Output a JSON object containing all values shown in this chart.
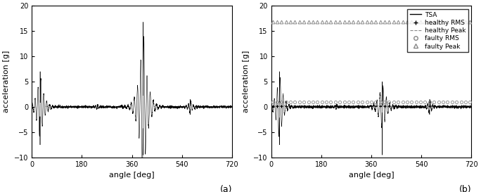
{
  "xlim": [
    0,
    720
  ],
  "ylim": [
    -10,
    20
  ],
  "xticks": [
    0,
    180,
    360,
    540,
    720
  ],
  "yticks": [
    -10,
    -5,
    0,
    5,
    10,
    15,
    20
  ],
  "xlabel": "angle [deg]",
  "ylabel": "acceleration [g]",
  "label_a": "(a)",
  "label_b": "(b)",
  "tsa_color": "#000000",
  "gray_color": "#888888",
  "faulty_rms_value": 1.0,
  "faulty_peak_value": 16.8,
  "healthy_rms_value": 0.18,
  "healthy_peak_value": 0.25,
  "noise_std": 0.12,
  "figsize": [
    6.84,
    2.73
  ],
  "dpi": 100
}
